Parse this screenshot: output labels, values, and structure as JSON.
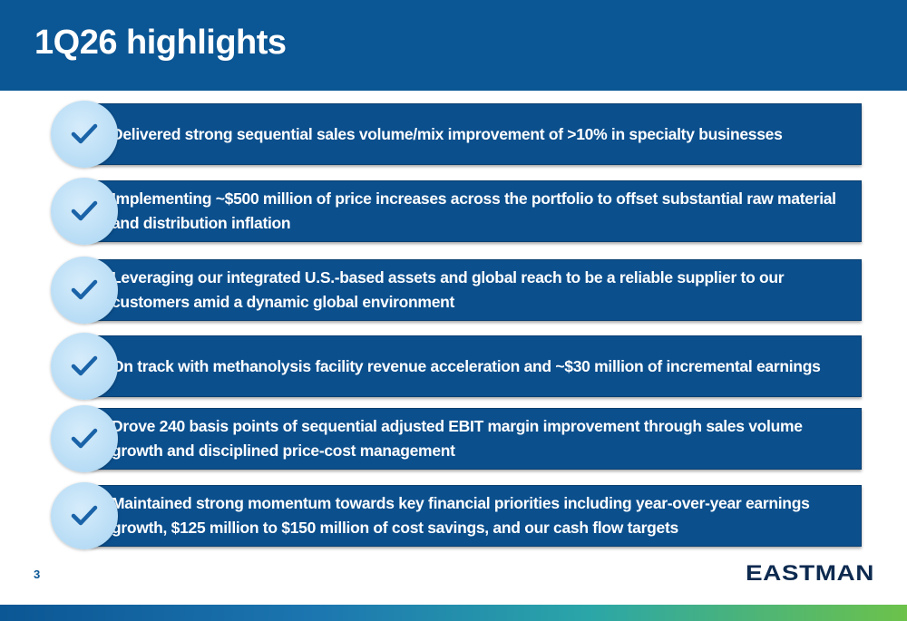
{
  "header": {
    "title": "1Q26 highlights"
  },
  "bullets": [
    {
      "text": "Delivered strong sequential sales volume/mix improvement of >10% in specialty businesses",
      "icon": "checkmark-icon"
    },
    {
      "text": "Implementing ~$500 million of price increases across the portfolio to offset substantial raw material and distribution inflation",
      "icon": "checkmark-icon"
    },
    {
      "text": "Leveraging our integrated U.S.-based assets and global reach to be a reliable supplier to our customers amid a dynamic global environment",
      "icon": "checkmark-icon"
    },
    {
      "text": "On track with methanolysis facility revenue acceleration and ~$30 million of incremental earnings",
      "icon": "checkmark-icon"
    },
    {
      "text": "Drove 240 basis points of sequential adjusted EBIT margin improvement through sales volume growth and disciplined price-cost management",
      "icon": "checkmark-icon"
    },
    {
      "text": "Maintained strong momentum towards key financial priorities including year-over-year earnings growth, $125 million to $150 million of cost savings, and our cash flow targets",
      "icon": "checkmark-icon"
    }
  ],
  "footer": {
    "page_number": "3",
    "logo_text": "EASTMAN"
  },
  "colors": {
    "header_blue": "#0b5694",
    "bar_blue": "#0b4f8d",
    "check_circle": "#b7dcf5",
    "check_mark": "#1a63a8"
  }
}
